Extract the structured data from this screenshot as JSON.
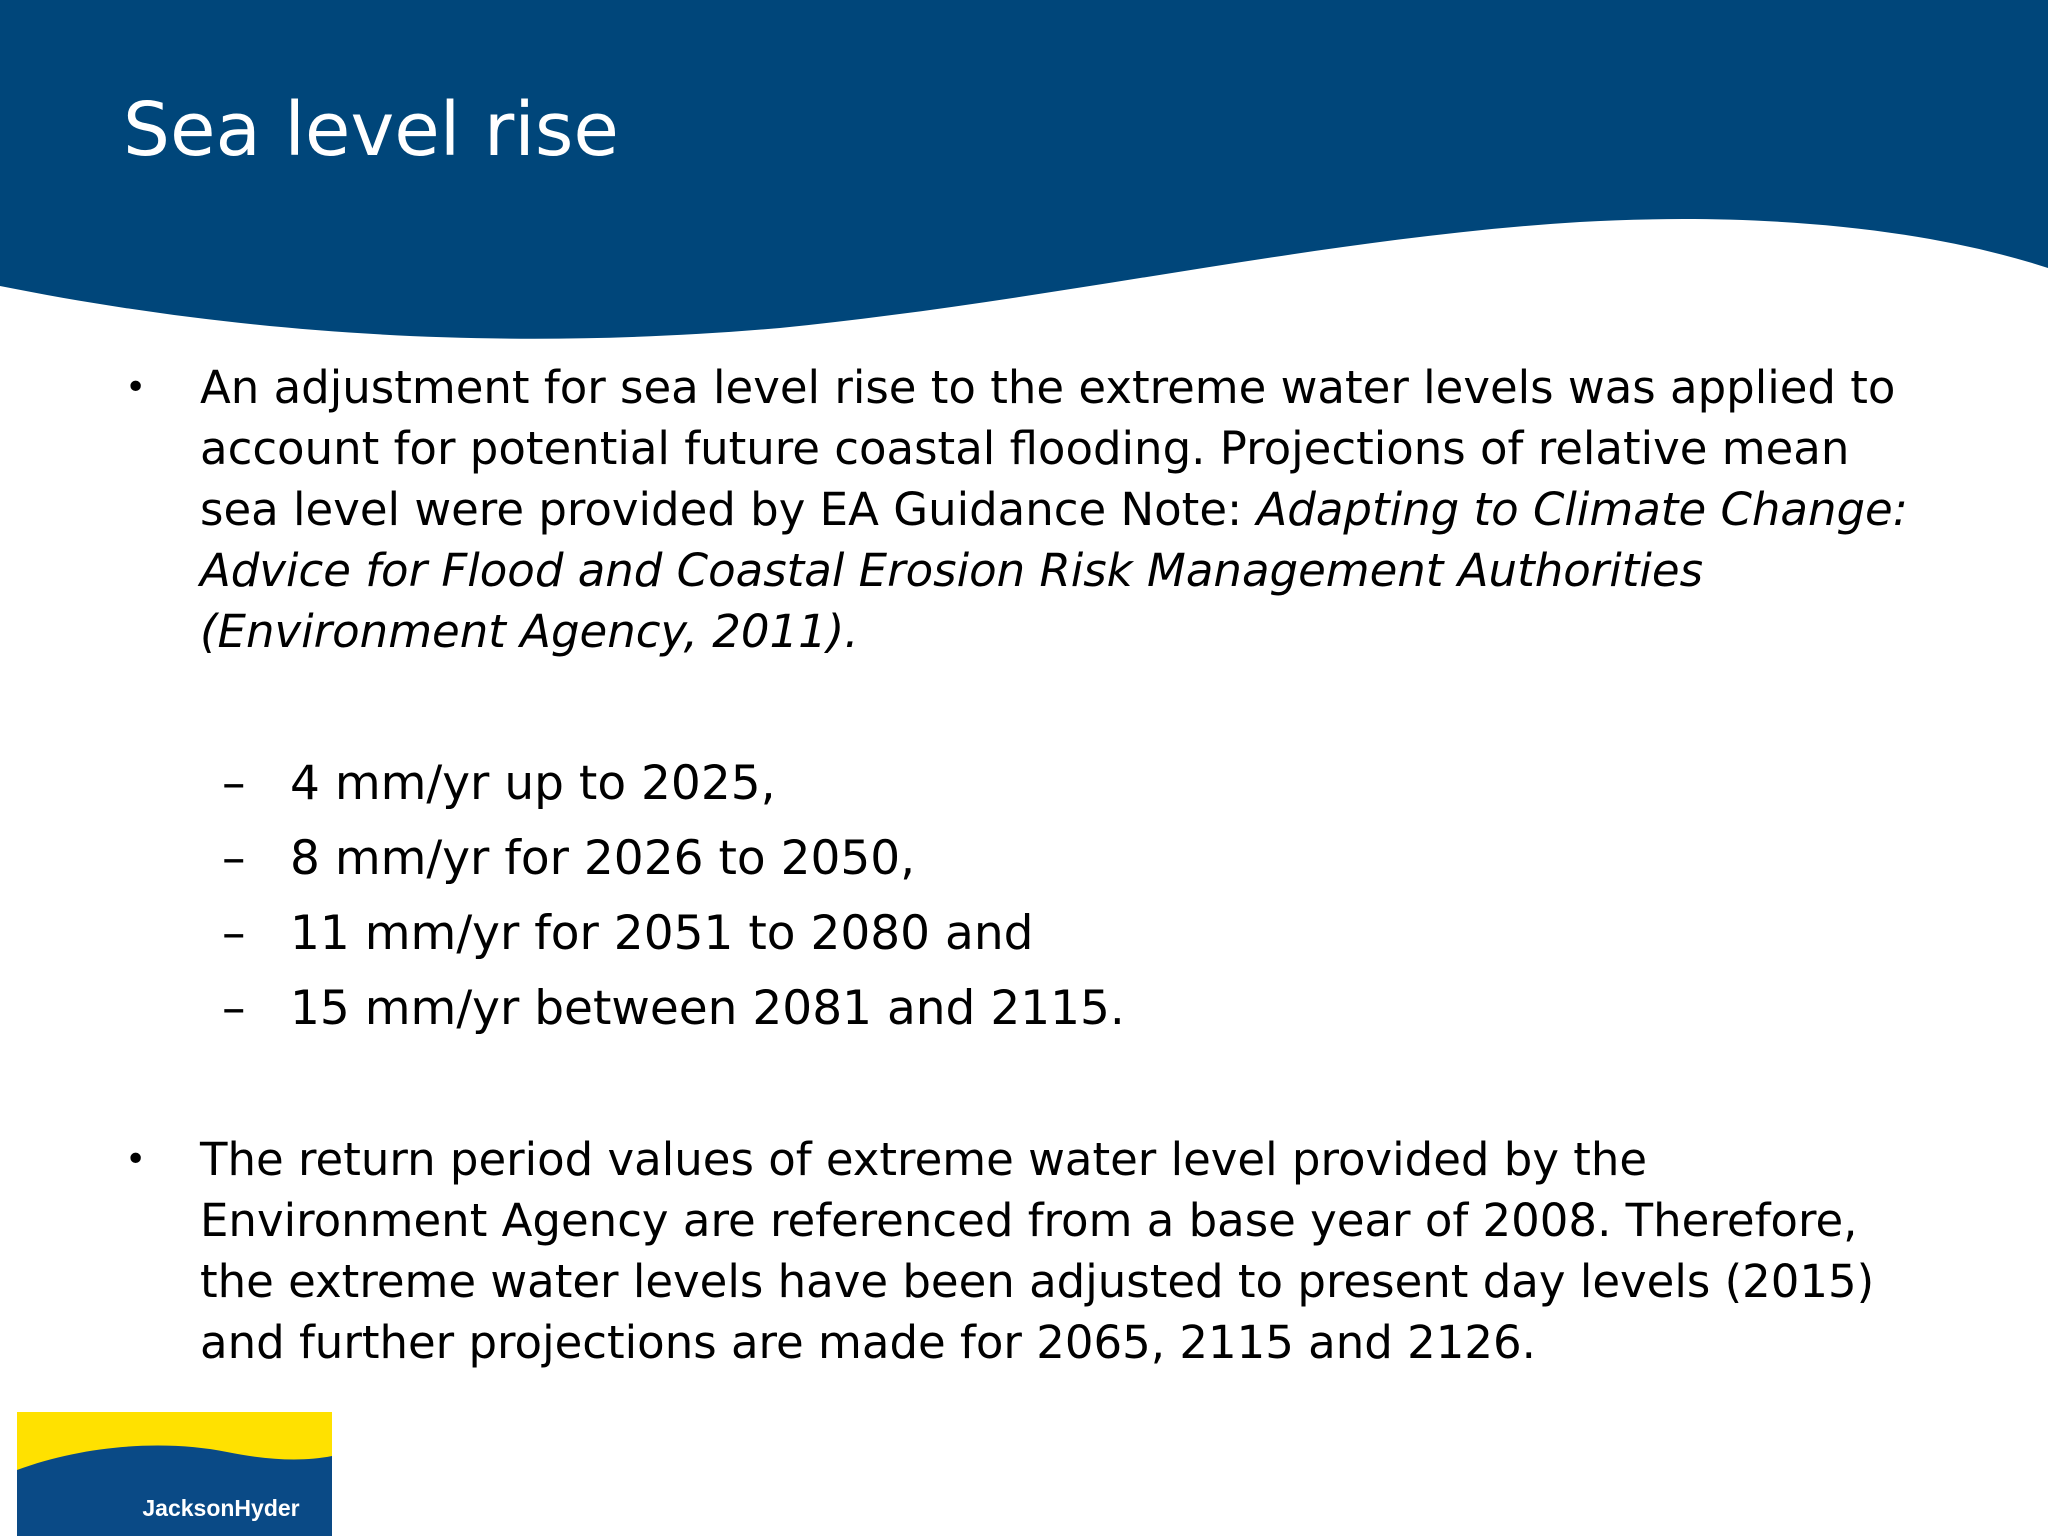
{
  "title": "Sea level rise",
  "bullets": [
    {
      "text": "An adjustment for sea level rise to the extreme water levels was applied to account for potential future coastal flooding. Projections of relative mean sea level were provided by EA Guidance Note: ",
      "italic": "Adapting to Climate Change: Advice for Flood and Coastal Erosion Risk Management Authorities (Environment Agency, 2011)."
    },
    {
      "text": "The return period values of extreme water level provided by the Environment Agency are referenced from a base year of 2008. Therefore, the extreme water levels have been adjusted to present day levels (2015) and further projections are made for 2065, 2115 and 2126."
    }
  ],
  "sub_items": [
    "4 mm/yr up to 2025,",
    "8 mm/yr for 2026 to 2050,",
    "11 mm/yr for 2051 to 2080 and",
    "15 mm/yr between 2081 and 2115."
  ],
  "bullet_symbol": "•",
  "dash_symbol": "–",
  "logo": {
    "text": "JacksonHyder",
    "colors": {
      "yellow": "#FFE100",
      "navy": "#0A4A86"
    }
  },
  "colors": {
    "header": "#00467A",
    "text": "#000000",
    "background": "#FFFFFF"
  }
}
